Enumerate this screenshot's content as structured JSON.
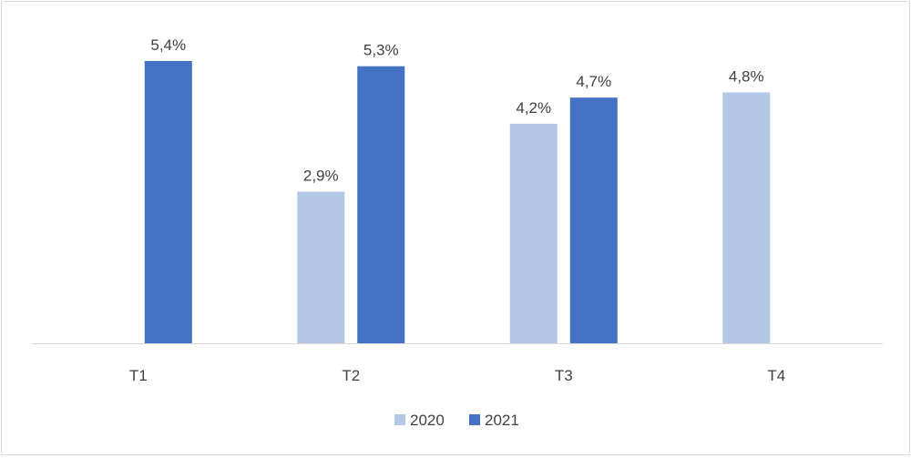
{
  "chart_data": {
    "type": "bar",
    "categories": [
      "T1",
      "T2",
      "T3",
      "T4"
    ],
    "series": [
      {
        "name": "2020",
        "values": [
          null,
          2.9,
          4.2,
          4.8
        ],
        "labels": [
          "",
          "2,9%",
          "4,2%",
          "4,8%"
        ],
        "color": "#b4c7e7"
      },
      {
        "name": "2021",
        "values": [
          5.4,
          5.3,
          4.7,
          null
        ],
        "labels": [
          "5,4%",
          "5,3%",
          "4,7%",
          ""
        ],
        "color": "#4472c4"
      }
    ],
    "ylim": [
      0,
      5.4
    ],
    "grid": false,
    "legend_position": "bottom",
    "axis_color": "#d9d9d9"
  }
}
